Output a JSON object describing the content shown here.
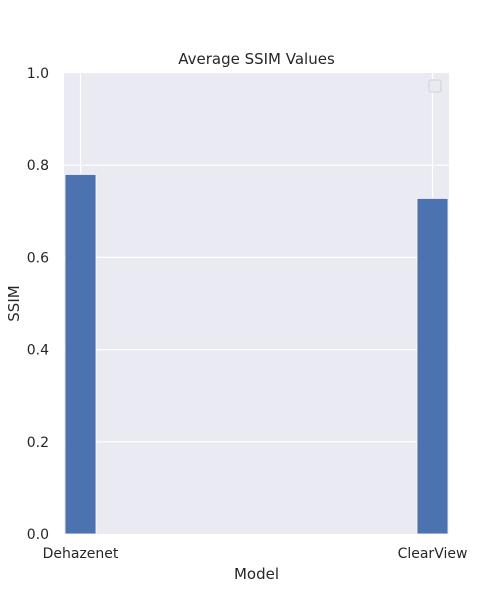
{
  "chart_data": {
    "type": "bar",
    "title": "Average SSIM Values",
    "xlabel": "Model",
    "ylabel": "SSIM",
    "categories": [
      "Dehazenet",
      "ClearView"
    ],
    "values": [
      0.78,
      0.728
    ],
    "ylim": [
      0,
      1.0
    ],
    "yticks": [
      "0.0",
      "0.2",
      "0.4",
      "0.6",
      "0.8",
      "1.0"
    ],
    "grid": true,
    "legend": "top-right (empty)",
    "colors": {
      "bar": "#4c72b0",
      "plot_background": "#eaeaf2",
      "grid": "#ffffff",
      "text": "#262626"
    }
  }
}
